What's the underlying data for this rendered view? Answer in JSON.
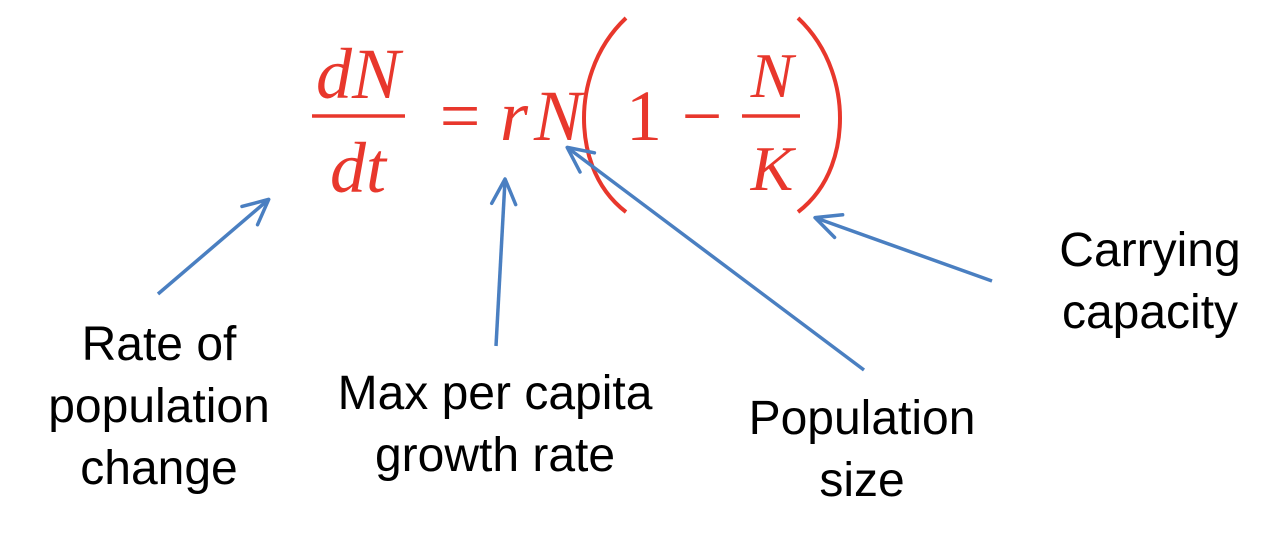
{
  "equation": {
    "lhs_numerator": "dN",
    "lhs_denominator": "dt",
    "equals": "=",
    "r": "r",
    "n": "N",
    "one": "1",
    "minus": "−",
    "frac_numerator": "N",
    "frac_denominator": "K",
    "color": "#e8372c"
  },
  "labels": {
    "rate": [
      "Rate of",
      "population",
      "change"
    ],
    "growth": [
      "Max per capita",
      "growth rate"
    ],
    "size": [
      "Population",
      "size"
    ],
    "capacity": [
      "Carrying",
      "capacity"
    ]
  },
  "arrow_color": "#4a7fc1"
}
